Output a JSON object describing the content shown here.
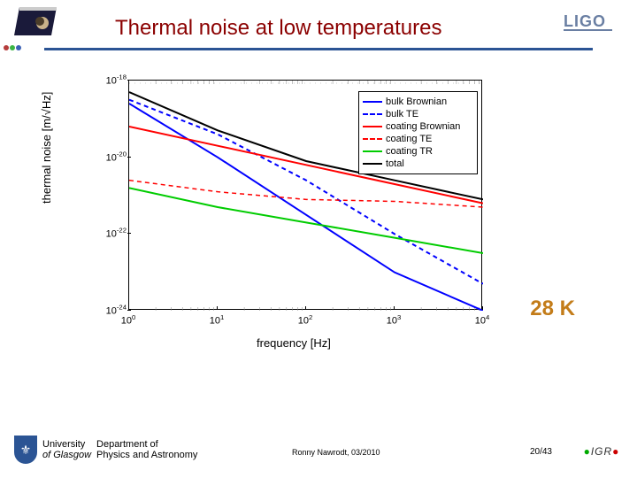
{
  "title": "Thermal noise at low temperatures",
  "top_right_logo_text": "LIGO",
  "annotation": "28 K",
  "plot": {
    "type": "line-loglog",
    "xlabel": "frequency [Hz]",
    "ylabel": "thermal noise [m/√Hz]",
    "xlim_exp": [
      0,
      4
    ],
    "ylim_exp": [
      -24,
      -18
    ],
    "xticks": [
      "10⁰",
      "10¹",
      "10²",
      "10³",
      "10⁴"
    ],
    "yticks": [
      "10⁻¹⁸",
      "10⁻²⁰",
      "10⁻²²",
      "10⁻²⁴"
    ],
    "ytick_exp": [
      -18,
      -20,
      -22,
      -24
    ],
    "xtick_exp": [
      0,
      1,
      2,
      3,
      4
    ],
    "background_color": "#ffffff",
    "axis_color": "#000000",
    "minor_tick_color": "#cccccc",
    "series": {
      "bulk_brownian": {
        "label": "bulk Brownian",
        "color": "#0000ff",
        "dash": "none",
        "width": 2,
        "points_exp": [
          [
            0,
            -18.6
          ],
          [
            1,
            -20.0
          ],
          [
            2,
            -21.5
          ],
          [
            3,
            -23.0
          ],
          [
            4,
            -24.0
          ]
        ]
      },
      "bulk_te": {
        "label": "bulk TE",
        "color": "#0000ff",
        "dash": "5,4",
        "width": 2,
        "points_exp": [
          [
            0,
            -18.5
          ],
          [
            1,
            -19.4
          ],
          [
            2,
            -20.6
          ],
          [
            3,
            -22.0
          ],
          [
            4,
            -23.3
          ]
        ]
      },
      "coating_brownian": {
        "label": "coating Brownian",
        "color": "#ff0000",
        "dash": "none",
        "width": 2,
        "points_exp": [
          [
            0,
            -19.2
          ],
          [
            1,
            -19.7
          ],
          [
            2,
            -20.2
          ],
          [
            3,
            -20.7
          ],
          [
            4,
            -21.2
          ]
        ]
      },
      "coating_te": {
        "label": "coating TE",
        "color": "#ff0000",
        "dash": "5,4",
        "width": 1.5,
        "points_exp": [
          [
            0,
            -20.6
          ],
          [
            1,
            -20.9
          ],
          [
            2,
            -21.1
          ],
          [
            3,
            -21.15
          ],
          [
            4,
            -21.3
          ]
        ]
      },
      "coating_tr": {
        "label": "coating TR",
        "color": "#00cc00",
        "dash": "none",
        "width": 2,
        "points_exp": [
          [
            0,
            -20.8
          ],
          [
            1,
            -21.3
          ],
          [
            2,
            -21.7
          ],
          [
            3,
            -22.1
          ],
          [
            4,
            -22.5
          ]
        ]
      },
      "total": {
        "label": "total",
        "color": "#000000",
        "dash": "none",
        "width": 2,
        "points_exp": [
          [
            0,
            -18.3
          ],
          [
            1,
            -19.3
          ],
          [
            2,
            -20.1
          ],
          [
            3,
            -20.6
          ],
          [
            4,
            -21.1
          ]
        ]
      }
    },
    "legend_order": [
      "bulk_brownian",
      "bulk_te",
      "coating_brownian",
      "coating_te",
      "coating_tr",
      "total"
    ]
  },
  "footer": {
    "uofg_top": "University",
    "uofg_bottom": "of Glasgow",
    "dept": "Department of\nPhysics and Astronomy",
    "center": "Ronny Nawrodt, 03/2010",
    "page": "20/43",
    "igr": "IGR"
  },
  "tl_dot_colors": [
    "#b53c3c",
    "#3cb544",
    "#3c62b5"
  ]
}
